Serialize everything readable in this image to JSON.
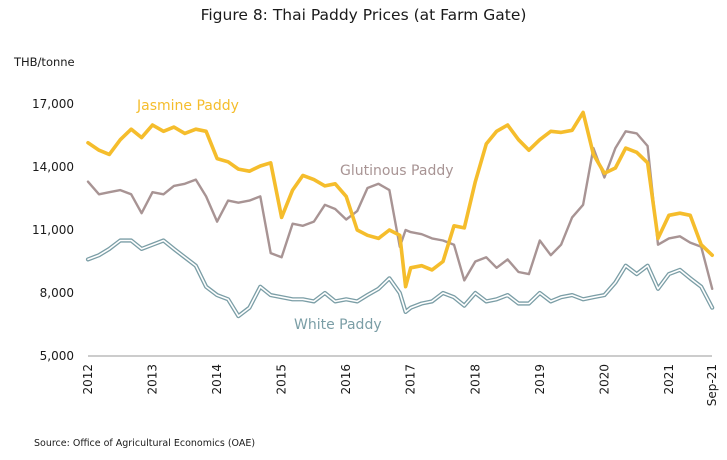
{
  "title": "Figure 8: Thai Paddy Prices (at Farm Gate)",
  "unit": "THB/tonne",
  "source": "Source: Office of Agricultural Economics (OAE)",
  "chart_data": {
    "type": "line",
    "title": "Figure 8: Thai Paddy Prices (at Farm Gate)",
    "ylabel": "THB/tonne",
    "ylim": [
      5000,
      17000
    ],
    "yticks": [
      "5,000",
      "8,000",
      "11,000",
      "14,000",
      "17,000"
    ],
    "ytick_values": [
      5000,
      8000,
      11000,
      14000,
      17000
    ],
    "xticks": [
      "2012",
      "2013",
      "2014",
      "2015",
      "2016",
      "2017",
      "2018",
      "2019",
      "2020",
      "2021",
      "Sep-21"
    ],
    "xtick_values": [
      2012.0,
      2013.0,
      2014.0,
      2015.0,
      2016.0,
      2017.0,
      2018.0,
      2019.0,
      2020.0,
      2021.0,
      2021.667
    ],
    "grid": false,
    "legend": "none (inline series labels)",
    "series": [
      {
        "name": "Jasmine Paddy",
        "color": "#f5bd2c",
        "style": "thick",
        "points": [
          [
            2012.0,
            15150
          ],
          [
            2012.17,
            14800
          ],
          [
            2012.33,
            14600
          ],
          [
            2012.5,
            15300
          ],
          [
            2012.67,
            15800
          ],
          [
            2012.83,
            15400
          ],
          [
            2013.0,
            16000
          ],
          [
            2013.17,
            15700
          ],
          [
            2013.33,
            15900
          ],
          [
            2013.5,
            15600
          ],
          [
            2013.67,
            15800
          ],
          [
            2013.83,
            15700
          ],
          [
            2014.0,
            14400
          ],
          [
            2014.17,
            14250
          ],
          [
            2014.33,
            13900
          ],
          [
            2014.5,
            13800
          ],
          [
            2014.67,
            14050
          ],
          [
            2014.83,
            14200
          ],
          [
            2015.0,
            11600
          ],
          [
            2015.17,
            12900
          ],
          [
            2015.33,
            13600
          ],
          [
            2015.5,
            13400
          ],
          [
            2015.67,
            13100
          ],
          [
            2015.83,
            13200
          ],
          [
            2016.0,
            12600
          ],
          [
            2016.17,
            11000
          ],
          [
            2016.33,
            10750
          ],
          [
            2016.5,
            10600
          ],
          [
            2016.67,
            11000
          ],
          [
            2016.83,
            10750
          ],
          [
            2016.92,
            8300
          ],
          [
            2017.0,
            9200
          ],
          [
            2017.17,
            9300
          ],
          [
            2017.33,
            9100
          ],
          [
            2017.5,
            9500
          ],
          [
            2017.67,
            11200
          ],
          [
            2017.83,
            11100
          ],
          [
            2018.0,
            13300
          ],
          [
            2018.17,
            15100
          ],
          [
            2018.33,
            15700
          ],
          [
            2018.5,
            16000
          ],
          [
            2018.67,
            15300
          ],
          [
            2018.83,
            14800
          ],
          [
            2019.0,
            15300
          ],
          [
            2019.17,
            15700
          ],
          [
            2019.33,
            15650
          ],
          [
            2019.5,
            15750
          ],
          [
            2019.67,
            16600
          ],
          [
            2019.83,
            14600
          ],
          [
            2020.0,
            13700
          ],
          [
            2020.17,
            13950
          ],
          [
            2020.33,
            14900
          ],
          [
            2020.5,
            14700
          ],
          [
            2020.67,
            14200
          ],
          [
            2020.83,
            10600
          ],
          [
            2021.0,
            11700
          ],
          [
            2021.17,
            11800
          ],
          [
            2021.33,
            11700
          ],
          [
            2021.5,
            10300
          ],
          [
            2021.67,
            9800
          ]
        ]
      },
      {
        "name": "Glutinous Paddy",
        "color": "#a89494",
        "style": "thin",
        "points": [
          [
            2012.0,
            13300
          ],
          [
            2012.17,
            12700
          ],
          [
            2012.33,
            12800
          ],
          [
            2012.5,
            12900
          ],
          [
            2012.67,
            12700
          ],
          [
            2012.83,
            11800
          ],
          [
            2013.0,
            12800
          ],
          [
            2013.17,
            12700
          ],
          [
            2013.33,
            13100
          ],
          [
            2013.5,
            13200
          ],
          [
            2013.67,
            13400
          ],
          [
            2013.83,
            12600
          ],
          [
            2014.0,
            11400
          ],
          [
            2014.17,
            12400
          ],
          [
            2014.33,
            12300
          ],
          [
            2014.5,
            12400
          ],
          [
            2014.67,
            12600
          ],
          [
            2014.83,
            9900
          ],
          [
            2015.0,
            9700
          ],
          [
            2015.17,
            11300
          ],
          [
            2015.33,
            11200
          ],
          [
            2015.5,
            11400
          ],
          [
            2015.67,
            12200
          ],
          [
            2015.83,
            12000
          ],
          [
            2016.0,
            11500
          ],
          [
            2016.17,
            11900
          ],
          [
            2016.33,
            13000
          ],
          [
            2016.5,
            13200
          ],
          [
            2016.67,
            12900
          ],
          [
            2016.83,
            10200
          ],
          [
            2016.92,
            11000
          ],
          [
            2017.0,
            10900
          ],
          [
            2017.17,
            10800
          ],
          [
            2017.33,
            10600
          ],
          [
            2017.5,
            10500
          ],
          [
            2017.67,
            10300
          ],
          [
            2017.83,
            8600
          ],
          [
            2018.0,
            9500
          ],
          [
            2018.17,
            9700
          ],
          [
            2018.33,
            9200
          ],
          [
            2018.5,
            9600
          ],
          [
            2018.67,
            9000
          ],
          [
            2018.83,
            8900
          ],
          [
            2019.0,
            10500
          ],
          [
            2019.17,
            9800
          ],
          [
            2019.33,
            10300
          ],
          [
            2019.5,
            11600
          ],
          [
            2019.67,
            12200
          ],
          [
            2019.83,
            14900
          ],
          [
            2020.0,
            13500
          ],
          [
            2020.17,
            14900
          ],
          [
            2020.33,
            15700
          ],
          [
            2020.5,
            15600
          ],
          [
            2020.67,
            15000
          ],
          [
            2020.83,
            10300
          ],
          [
            2021.0,
            10600
          ],
          [
            2021.17,
            10700
          ],
          [
            2021.33,
            10400
          ],
          [
            2021.5,
            10200
          ],
          [
            2021.67,
            8200
          ]
        ]
      },
      {
        "name": "White Paddy",
        "color": "#7b9ea6",
        "style": "double",
        "points": [
          [
            2012.0,
            9600
          ],
          [
            2012.17,
            9800
          ],
          [
            2012.33,
            10100
          ],
          [
            2012.5,
            10500
          ],
          [
            2012.67,
            10500
          ],
          [
            2012.83,
            10100
          ],
          [
            2013.0,
            10300
          ],
          [
            2013.17,
            10500
          ],
          [
            2013.33,
            10100
          ],
          [
            2013.5,
            9700
          ],
          [
            2013.67,
            9300
          ],
          [
            2013.83,
            8300
          ],
          [
            2014.0,
            7900
          ],
          [
            2014.17,
            7700
          ],
          [
            2014.33,
            6900
          ],
          [
            2014.5,
            7300
          ],
          [
            2014.67,
            8300
          ],
          [
            2014.83,
            7900
          ],
          [
            2015.0,
            7800
          ],
          [
            2015.17,
            7700
          ],
          [
            2015.33,
            7700
          ],
          [
            2015.5,
            7600
          ],
          [
            2015.67,
            8000
          ],
          [
            2015.83,
            7600
          ],
          [
            2016.0,
            7700
          ],
          [
            2016.17,
            7600
          ],
          [
            2016.33,
            7900
          ],
          [
            2016.5,
            8200
          ],
          [
            2016.67,
            8700
          ],
          [
            2016.83,
            8000
          ],
          [
            2016.92,
            7100
          ],
          [
            2017.0,
            7300
          ],
          [
            2017.17,
            7500
          ],
          [
            2017.33,
            7600
          ],
          [
            2017.5,
            8000
          ],
          [
            2017.67,
            7800
          ],
          [
            2017.83,
            7400
          ],
          [
            2018.0,
            8000
          ],
          [
            2018.17,
            7600
          ],
          [
            2018.33,
            7700
          ],
          [
            2018.5,
            7900
          ],
          [
            2018.67,
            7500
          ],
          [
            2018.83,
            7500
          ],
          [
            2019.0,
            8000
          ],
          [
            2019.17,
            7600
          ],
          [
            2019.33,
            7800
          ],
          [
            2019.5,
            7900
          ],
          [
            2019.67,
            7700
          ],
          [
            2019.83,
            7800
          ],
          [
            2020.0,
            7900
          ],
          [
            2020.17,
            8500
          ],
          [
            2020.33,
            9300
          ],
          [
            2020.5,
            8900
          ],
          [
            2020.67,
            9300
          ],
          [
            2020.83,
            8200
          ],
          [
            2021.0,
            8900
          ],
          [
            2021.17,
            9100
          ],
          [
            2021.33,
            8700
          ],
          [
            2021.5,
            8300
          ],
          [
            2021.67,
            7300
          ]
        ]
      }
    ]
  }
}
